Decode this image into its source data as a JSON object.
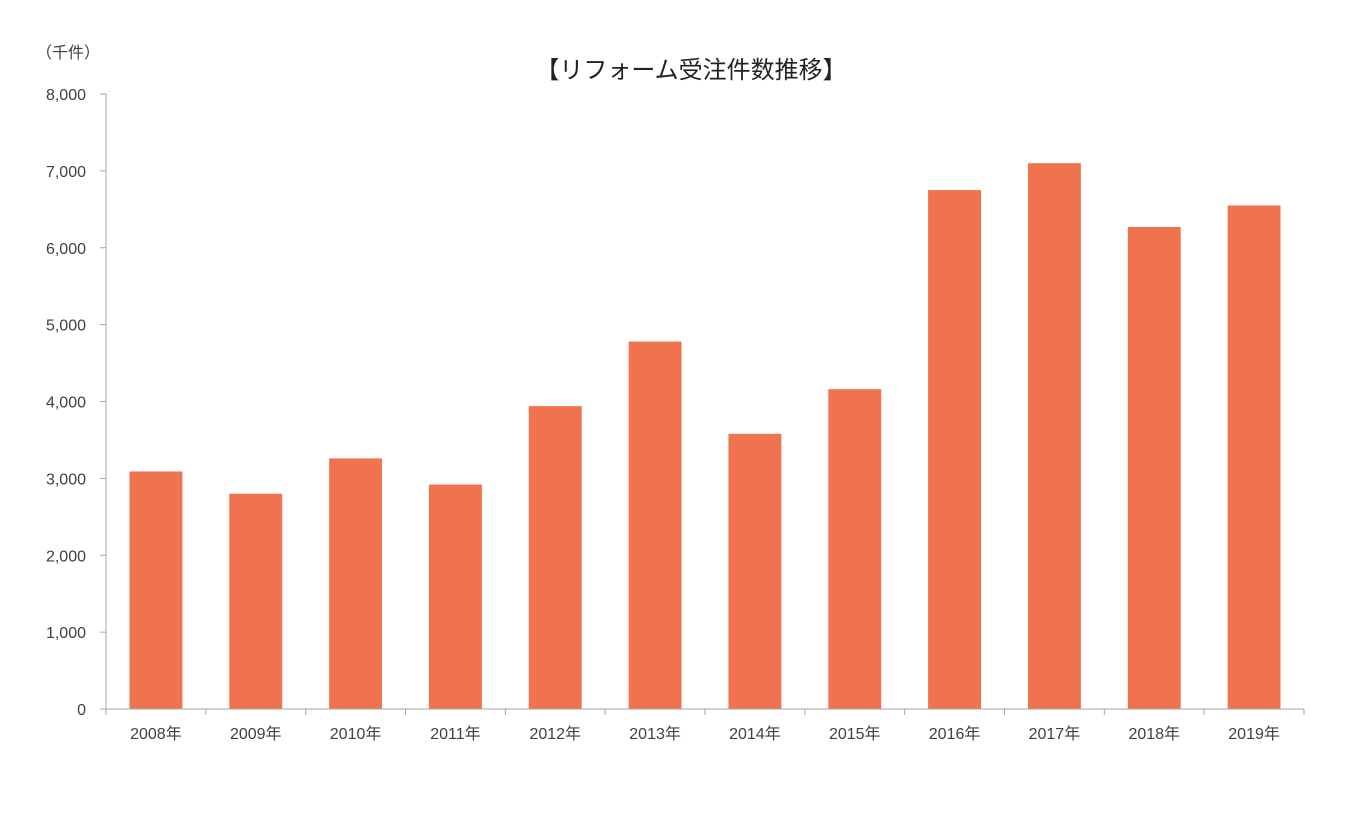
{
  "chart_data": {
    "type": "bar",
    "title": "【リフォーム受注件数推移】",
    "ylabel": "（千件）",
    "xlabel": "",
    "categories": [
      "2008年",
      "2009年",
      "2010年",
      "2011年",
      "2012年",
      "2013年",
      "2014年",
      "2015年",
      "2016年",
      "2017年",
      "2018年",
      "2019年"
    ],
    "values": [
      3090,
      2800,
      3260,
      2920,
      3940,
      4780,
      3580,
      4160,
      6750,
      7100,
      6270,
      6550
    ],
    "ylim": [
      0,
      8000
    ],
    "yticks": [
      "0",
      "1,000",
      "2,000",
      "3,000",
      "4,000",
      "5,000",
      "6,000",
      "7,000",
      "8,000"
    ],
    "grid": false,
    "legend": "none",
    "bar_color": "#F07350",
    "axis_color": "#a6a6a6"
  }
}
